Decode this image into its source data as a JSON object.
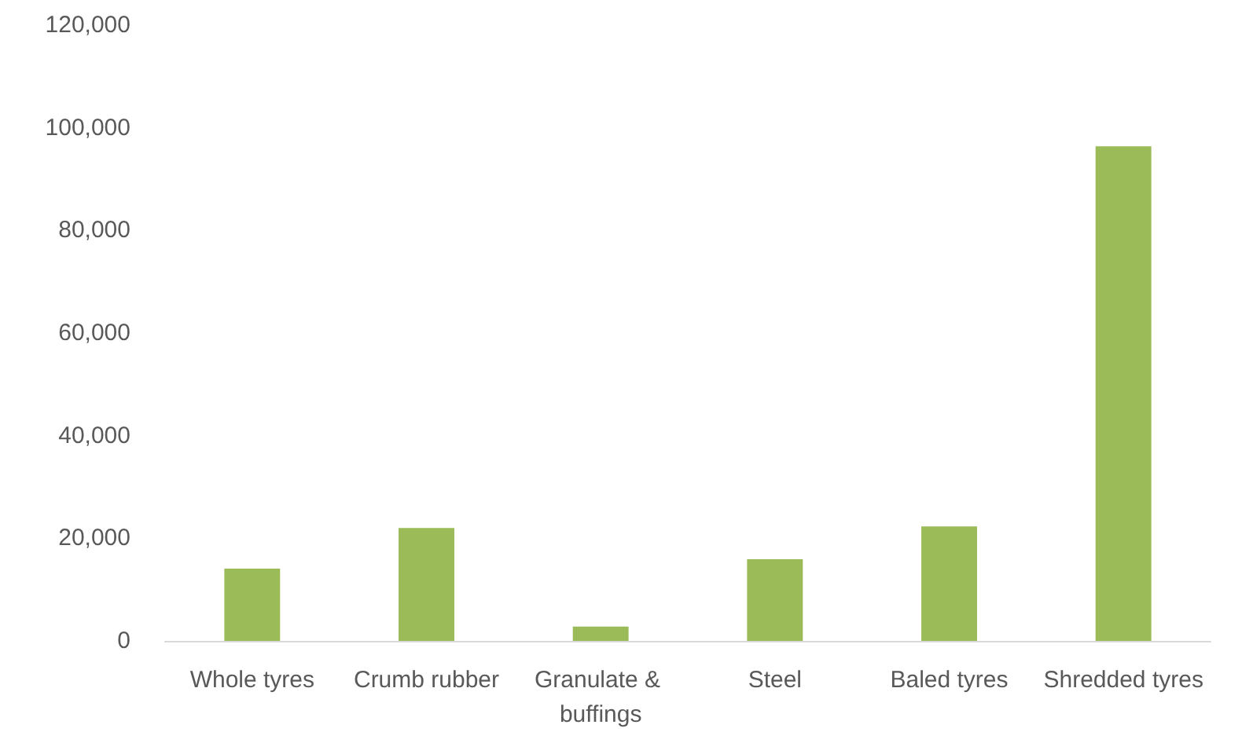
{
  "chart_data": {
    "type": "bar",
    "categories": [
      "Whole tyres",
      "Crumb rubber",
      "Granulate & buffings",
      "Steel",
      "Baled tyres",
      "Shredded tyres"
    ],
    "values": [
      14100,
      22000,
      2800,
      15900,
      22300,
      96400
    ],
    "color": "#9bbb59",
    "ylim": [
      0,
      120000
    ],
    "yticks": [
      0,
      {
        "value": 20000,
        "label": "20,000"
      },
      {
        "value": 40000,
        "label": "40,000"
      },
      {
        "value": 60000,
        "label": "60,000"
      },
      {
        "value": 80000,
        "label": "80,000"
      },
      {
        "value": 100000,
        "label": "100,000"
      },
      {
        "value": 120000,
        "label": "120,000"
      }
    ],
    "grid": false
  }
}
